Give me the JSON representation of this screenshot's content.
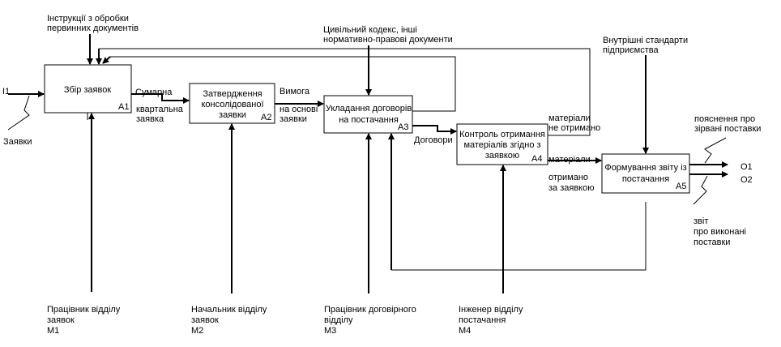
{
  "inputs": {
    "i1": "I1",
    "zayavky": "Заявки"
  },
  "controls": {
    "instructions_l1": "Інструкції з обробки",
    "instructions_l2": "первинних документів",
    "civil_code_l1": "Цивільний кодекс, інші",
    "civil_code_l2": "нормативно-правові документи",
    "standards_l1": "Внутрішні стандарти",
    "standards_l2": "підприємства"
  },
  "boxes": {
    "a1": {
      "title": "Збір заявок",
      "code": "А1"
    },
    "a2": {
      "title_l1": "Затвердження",
      "title_l2": "консолідованої",
      "title_l3": "заявки",
      "code": "А2"
    },
    "a3": {
      "title_l1": "Укладання договорів",
      "title_l2": "на постачання",
      "code": "А3"
    },
    "a4": {
      "title_l1": "Контроль отримання",
      "title_l2": "матеріалів згідно з",
      "title_l3": "заявкою",
      "code": "А4"
    },
    "a5": {
      "title_l1": "Формування звіту із",
      "title_l2": "постачання",
      "code": "А5"
    }
  },
  "arrows": {
    "sumarna": "Сумарна",
    "kvartalna_l1": "квартальна",
    "kvartalna_l2": "заявка",
    "vymoga_l1": "Вимога",
    "vymoga_l2": "на основі",
    "vymoga_l3": "заявки",
    "dogovory": "Договори",
    "ne_otrymano_l1": "матеріали",
    "ne_otrymano_l2": "не отримано",
    "otrymano_l1": "матеріали",
    "otrymano_l2": "отримано",
    "otrymano_l3": "за заявкою"
  },
  "outputs": {
    "poyasnennya_l1": "пояснення про",
    "poyasnennya_l2": "зірвані поставки",
    "o1": "O1",
    "o2": "O2",
    "zvit_l1": "звіт",
    "zvit_l2": "про виконані",
    "zvit_l3": "поставки"
  },
  "mechanisms": {
    "m1": {
      "l1": "Працівник відділу",
      "l2": "заявок",
      "code": "M1"
    },
    "m2": {
      "l1": "Начальник відділу",
      "l2": "заявок",
      "code": "M2"
    },
    "m3": {
      "l1": "Працівник договірного",
      "l2": "відділу",
      "code": "M3"
    },
    "m4": {
      "l1": "Інженер відділу",
      "l2": "постачання",
      "code": "M4"
    }
  }
}
